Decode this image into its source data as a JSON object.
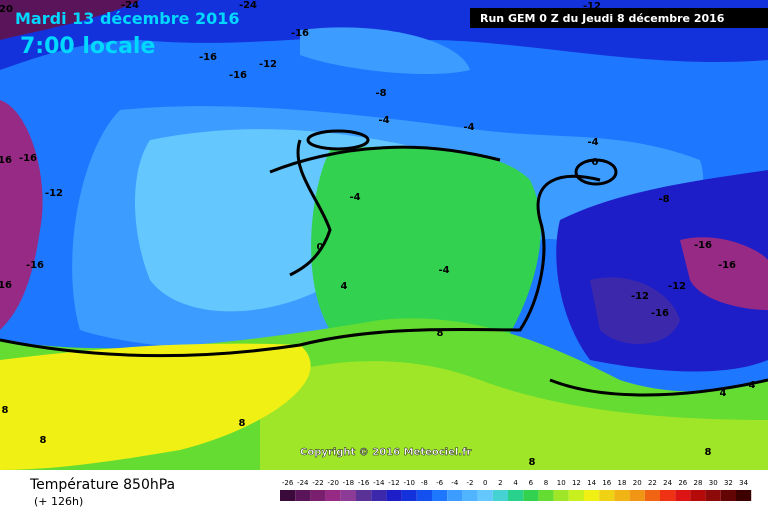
{
  "header": {
    "date": "Mardi 13 décembre 2016",
    "time": "7:00 locale",
    "run": "Run GEM 0 Z du Jeudi 8 décembre 2016",
    "copyright": "Copyright © 2016 Meteociel.fr"
  },
  "footer": {
    "title": "Température 850hPa",
    "subtitle": "(+ 126h)"
  },
  "legend": {
    "values": [
      -26,
      -24,
      -22,
      -20,
      -18,
      -16,
      -14,
      -12,
      -10,
      -8,
      -6,
      -4,
      -2,
      0,
      2,
      4,
      6,
      8,
      10,
      12,
      14,
      16,
      18,
      20,
      22,
      24,
      26,
      28,
      30,
      32,
      34
    ],
    "colors": [
      "#3a0a3a",
      "#5a145a",
      "#7a1e6e",
      "#962a84",
      "#8c3c96",
      "#5a3296",
      "#3c28aa",
      "#1e1ec8",
      "#1432dc",
      "#1450f0",
      "#1e78ff",
      "#3c9cff",
      "#50b4ff",
      "#64c8ff",
      "#46d2d2",
      "#28d28c",
      "#32d250",
      "#64dc32",
      "#a0e628",
      "#c8f01e",
      "#f0f014",
      "#f0d214",
      "#f0b414",
      "#f09614",
      "#f06414",
      "#f03214",
      "#dc1414",
      "#b40a0a",
      "#8c0a0a",
      "#640505",
      "#3c0000"
    ]
  },
  "contour_labels": [
    20,
    -24,
    -24,
    -12,
    -16,
    -16,
    -16,
    -12,
    -8,
    -4,
    -4,
    -4,
    16,
    -16,
    -12,
    -4,
    -8,
    0,
    -16,
    -16,
    -12,
    -12,
    16,
    -16,
    -16,
    0,
    -4,
    4,
    8,
    8,
    8,
    8,
    4,
    4,
    8,
    8
  ]
}
